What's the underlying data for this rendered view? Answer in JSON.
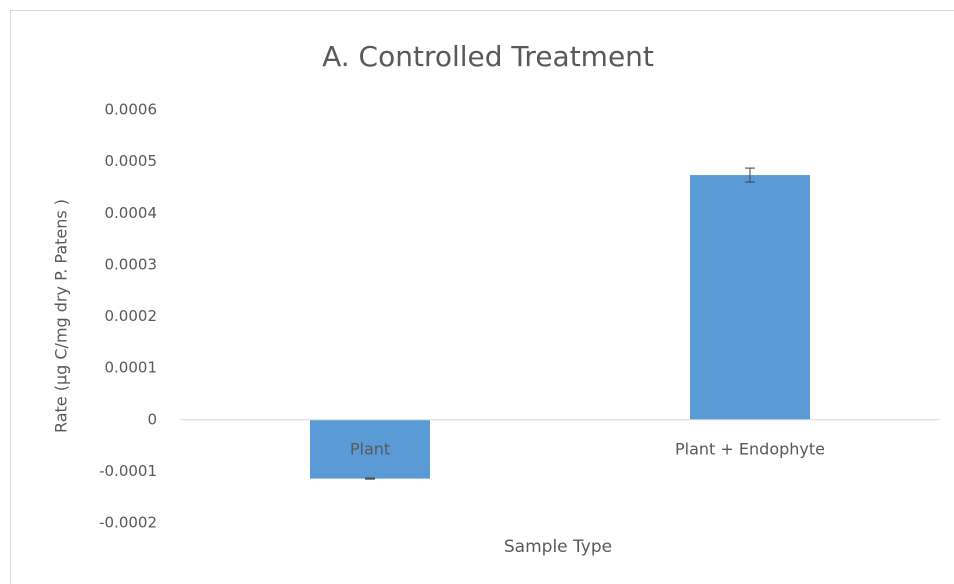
{
  "chart_data": {
    "type": "bar",
    "title": "A. Controlled Treatment",
    "x_label": "Sample Type",
    "y_label": "Rate (µg C/mg dry P. Patens )",
    "categories": [
      "Plant",
      "Plant + Endophyte"
    ],
    "values": [
      -0.000114,
      0.000474
    ],
    "errors": [
      1e-06,
      1.35e-05
    ],
    "color": "#5b9bd5",
    "ylim": [
      -0.0002,
      0.0006
    ],
    "yticks": [
      -0.0002,
      -0.0001,
      0,
      0.0001,
      0.0002,
      0.0003,
      0.0004,
      0.0005,
      0.0006
    ],
    "grid": false
  }
}
